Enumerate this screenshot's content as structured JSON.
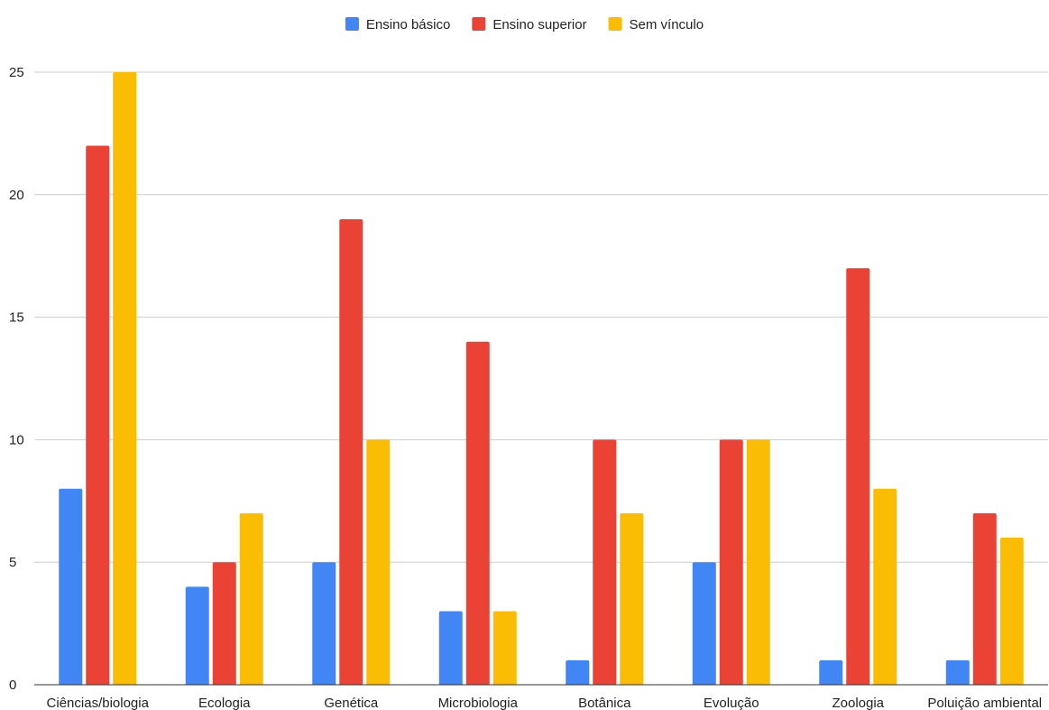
{
  "chart_data": {
    "type": "bar",
    "categories": [
      "Ciências/biologia",
      "Ecologia",
      "Genética",
      "Microbiologia",
      "Botânica",
      "Evolução",
      "Zoologia",
      "Poluição ambiental"
    ],
    "series": [
      {
        "name": "Ensino básico",
        "color": "#4285F4",
        "values": [
          8,
          4,
          5,
          3,
          1,
          5,
          1,
          1
        ]
      },
      {
        "name": "Ensino superior",
        "color": "#EA4335",
        "values": [
          22,
          5,
          19,
          14,
          10,
          10,
          17,
          7
        ]
      },
      {
        "name": "Sem vínculo",
        "color": "#FBBC04",
        "values": [
          25,
          7,
          10,
          3,
          7,
          10,
          8,
          6
        ]
      }
    ],
    "yticks": [
      0,
      5,
      10,
      15,
      20,
      25
    ],
    "ylim": [
      0,
      25
    ],
    "grid": true,
    "legend_position": "top-center",
    "title": "",
    "xlabel": "",
    "ylabel": ""
  }
}
